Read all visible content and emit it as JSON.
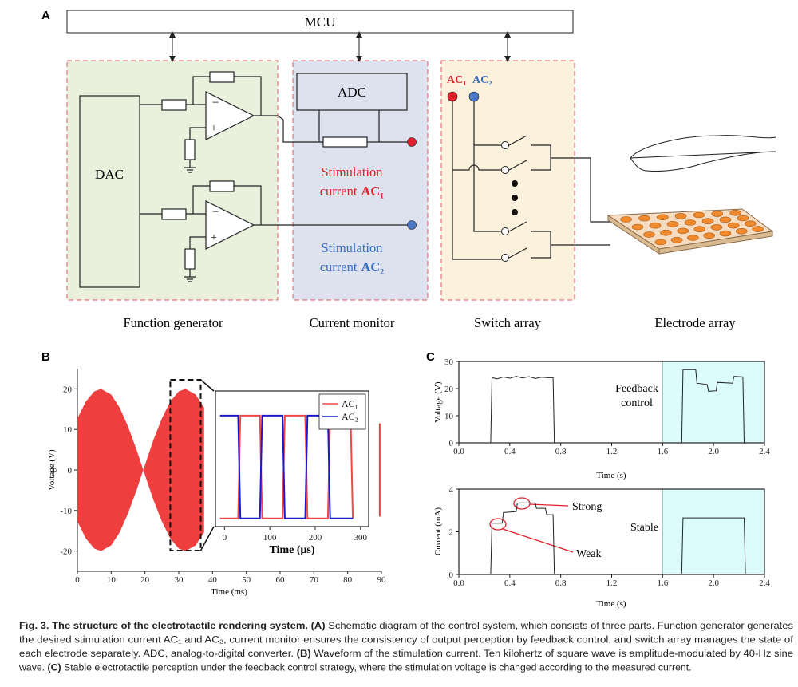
{
  "panel_labels": [
    "A",
    "B",
    "C"
  ],
  "diagram": {
    "mcu": "MCU",
    "adc": "ADC",
    "dac": "DAC",
    "minus": "−",
    "plus": "+",
    "stimulation_1": {
      "lines": [
        "Stimulation",
        "current"
      ],
      "signal": "AC₁"
    },
    "stimulation_2": {
      "lines": [
        "Stimulation",
        "current"
      ],
      "signal": "AC₂"
    },
    "switch_inputs": [
      "AC₁",
      "AC₂"
    ],
    "sections": [
      "Function generator",
      "Current monitor",
      "Switch array",
      "Electrode array"
    ]
  },
  "chart_data": [
    {
      "type": "envelope",
      "xlabel": "Time (ms)",
      "ylabel": "Voltage (V)",
      "x": [
        0,
        2.5,
        5,
        7,
        10,
        12.5,
        15,
        17.5,
        19.5,
        22.5,
        25,
        27.5,
        30,
        32,
        35,
        37.5
      ],
      "values": [
        12.7,
        16.9,
        19.4,
        20,
        18.6,
        15.4,
        10.7,
        5.0,
        0,
        7.4,
        12.7,
        16.9,
        19.4,
        20,
        18.6,
        15.4
      ],
      "edge_segment": {
        "x": 89.5,
        "values": [
          11.5,
          -11.5
        ]
      },
      "color": "#ef3e3e",
      "zoom_xlim": [
        27.5,
        36.5
      ],
      "xlim": [
        0,
        90
      ],
      "xticks": [
        0,
        10,
        20,
        30,
        40,
        50,
        60,
        70,
        80,
        90
      ],
      "ylim": [
        -25,
        25
      ],
      "yticks": [
        -20,
        -10,
        0,
        10,
        20
      ],
      "frame": "axes"
    },
    {
      "type": "line",
      "xlabel": "Time (μs)",
      "legend": "upper right",
      "series": [
        {
          "name": "AC₁",
          "color": "#f04848",
          "x": [
            -10,
            30,
            35,
            78,
            83,
            128,
            133,
            178,
            183,
            228,
            233,
            278,
            283
          ],
          "values": [
            -11,
            -11,
            14,
            14,
            -11,
            -11,
            14,
            14,
            -11,
            -11,
            14,
            14,
            -11
          ]
        },
        {
          "name": "AC₂",
          "color": "#1a1acc",
          "x": [
            -10,
            30,
            35,
            78,
            83,
            128,
            133,
            178,
            183,
            228,
            233,
            283
          ],
          "values": [
            14,
            14,
            -11,
            -11,
            14,
            14,
            -11,
            -11,
            14,
            14,
            -11,
            -11
          ]
        }
      ],
      "xlim": [
        -20,
        318
      ],
      "xticks": [
        0,
        100,
        200,
        300
      ],
      "ylim": [
        -13,
        20
      ],
      "frame": "box"
    },
    {
      "type": "line",
      "xlabel": "Time (s)",
      "ylabel": "Voltage (V)",
      "annotation": [
        "Feedback",
        "control"
      ],
      "highlight_xlim": [
        1.6,
        2.4
      ],
      "highlight_color": "#dcfbfb",
      "series": [
        {
          "color": "#222222",
          "x": [
            0,
            0.25,
            0.26,
            0.3,
            0.35,
            0.4,
            0.45,
            0.5,
            0.55,
            0.6,
            0.65,
            0.7,
            0.74,
            0.75,
            1.75,
            1.76,
            1.86,
            1.87,
            1.95,
            1.96,
            2.02,
            2.03,
            2.15,
            2.16,
            2.23,
            2.24,
            2.4
          ],
          "values": [
            0,
            0,
            24,
            23.6,
            24.3,
            23.8,
            24.5,
            23.9,
            24.4,
            23.7,
            24.2,
            24,
            24,
            0,
            0,
            27,
            27,
            22,
            21.5,
            19,
            19.2,
            22.3,
            22,
            24.5,
            24.3,
            0,
            0
          ]
        }
      ],
      "xlim": [
        0,
        2.4
      ],
      "xticks": [
        {
          "value": 0,
          "label": "0.0"
        },
        0.4,
        0.8,
        1.2,
        1.6,
        {
          "value": 2,
          "label": "2.0"
        },
        2.4
      ],
      "ylim": [
        0,
        30
      ],
      "yticks": [
        0,
        10,
        20,
        30
      ],
      "frame": "box"
    },
    {
      "type": "line",
      "xlabel": "Time (s)",
      "ylabel": "Current (mA)",
      "annotations": [
        "Strong",
        "Weak",
        "Stable"
      ],
      "highlight_xlim": [
        1.6,
        2.4
      ],
      "highlight_color": "#dcfbfb",
      "series": [
        {
          "color": "#222222",
          "x": [
            0,
            0.25,
            0.26,
            0.34,
            0.35,
            0.45,
            0.46,
            0.6,
            0.61,
            0.68,
            0.69,
            0.74,
            0.75,
            1.75,
            1.76,
            2.24,
            2.25,
            2.4
          ],
          "values": [
            0,
            0,
            2.4,
            2.4,
            2.9,
            2.95,
            3.35,
            3.35,
            3.1,
            3.1,
            2.8,
            2.8,
            0,
            0,
            2.65,
            2.65,
            0,
            0
          ]
        }
      ],
      "xlim": [
        0,
        2.4
      ],
      "xticks": [
        {
          "value": 0,
          "label": "0.0"
        },
        0.4,
        0.8,
        1.2,
        1.6,
        {
          "value": 2,
          "label": "2.0"
        },
        2.4
      ],
      "ylim": [
        0,
        4
      ],
      "yticks": [
        0,
        2,
        4
      ],
      "frame": "box"
    }
  ],
  "caption": {
    "lines": [
      [
        {
          "text": "Fig. 3. The structure of the electrotactile rendering system.",
          "bold": true
        },
        {
          "text": " (A)",
          "bold": true
        },
        {
          "text": " Schematic diagram of the control system, which consists of three parts. Function generator generates",
          "bold": false
        }
      ],
      [
        {
          "text": "the desired stimulation current AC₁ and AC₂, current monitor ensures the consistency of output perception by feedback control, and switch array manages the state of",
          "bold": false
        }
      ],
      [
        {
          "text": "each electrode separately. ADC, analog-to-digital converter. ",
          "bold": false
        },
        {
          "text": "(B)",
          "bold": true
        },
        {
          "text": " Waveform of the stimulation current. Ten kilohertz of square wave is amplitude-modulated by 40-Hz sine",
          "bold": false
        }
      ],
      [
        {
          "text": "wave. ",
          "bold": false
        },
        {
          "text": "(C)",
          "bold": true
        },
        {
          "text": " Stable electrotactile perception under the feedback control strategy, where the stimulation voltage is changed according to the measured current.",
          "bold": false
        }
      ]
    ]
  }
}
